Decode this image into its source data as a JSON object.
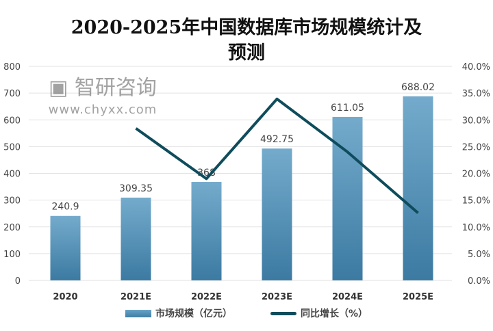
{
  "chart_data": {
    "type": "bar",
    "title_line1": "2020-2025年中国数据库市场规模统计及",
    "title_line2": "预测",
    "categories": [
      "2020",
      "2021E",
      "2022E",
      "2023E",
      "2024E",
      "2025E"
    ],
    "series": [
      {
        "name": "市场规模（亿元）",
        "type": "bar",
        "axis": "left",
        "values": [
          240.9,
          309.35,
          368.0,
          492.75,
          611.05,
          688.02
        ],
        "labels": [
          "240.9",
          "309.35",
          "368",
          "492.75",
          "611.05",
          "688.02"
        ],
        "color": "#4f8db5"
      },
      {
        "name": "同比增长（%）",
        "type": "line",
        "axis": "right",
        "values": [
          null,
          28.4,
          19.0,
          33.9,
          24.0,
          12.6
        ],
        "color": "#0f4c5c"
      }
    ],
    "left_axis": {
      "ylim": [
        0,
        800
      ],
      "ticks": [
        "0",
        "100",
        "200",
        "300",
        "400",
        "500",
        "600",
        "700",
        "800"
      ]
    },
    "right_axis": {
      "ylim": [
        0,
        40
      ],
      "ticks": [
        "0.0%",
        "5.0%",
        "10.0%",
        "15.0%",
        "20.0%",
        "25.0%",
        "30.0%",
        "35.0%",
        "40.0%"
      ]
    },
    "grid": true,
    "legend_position": "bottom"
  },
  "watermark": {
    "brand": "智研咨询",
    "url": "www.chyxx.com"
  }
}
